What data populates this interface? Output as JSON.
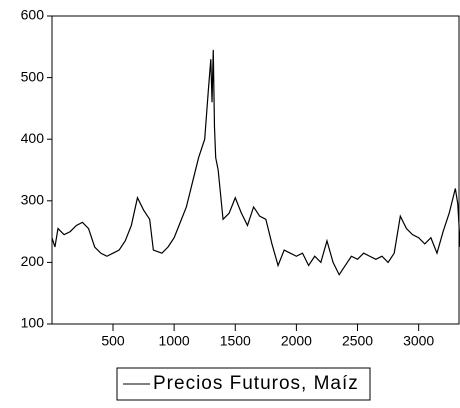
{
  "chart_data": {
    "type": "line",
    "x": [
      1,
      25,
      50,
      100,
      150,
      200,
      250,
      300,
      350,
      400,
      450,
      500,
      550,
      600,
      650,
      700,
      750,
      800,
      830,
      900,
      950,
      1000,
      1050,
      1100,
      1150,
      1200,
      1250,
      1280,
      1300,
      1310,
      1320,
      1330,
      1340,
      1360,
      1400,
      1450,
      1500,
      1550,
      1600,
      1650,
      1700,
      1750,
      1800,
      1850,
      1900,
      1950,
      2000,
      2050,
      2100,
      2150,
      2200,
      2250,
      2300,
      2350,
      2400,
      2450,
      2500,
      2550,
      2600,
      2650,
      2700,
      2750,
      2800,
      2850,
      2900,
      2950,
      3000,
      3050,
      3100,
      3150,
      3200,
      3250,
      3300,
      3320,
      3340
    ],
    "series": [
      {
        "name": "Precios Futuros, Maíz",
        "color": "#000000",
        "values": [
          240,
          225,
          255,
          245,
          250,
          260,
          265,
          255,
          225,
          215,
          210,
          215,
          220,
          235,
          260,
          305,
          285,
          270,
          220,
          215,
          225,
          240,
          265,
          290,
          330,
          370,
          400,
          480,
          530,
          460,
          545,
          420,
          370,
          350,
          270,
          280,
          305,
          280,
          260,
          290,
          275,
          270,
          230,
          195,
          220,
          215,
          210,
          215,
          195,
          210,
          200,
          235,
          200,
          180,
          195,
          210,
          205,
          215,
          210,
          205,
          210,
          200,
          215,
          275,
          255,
          245,
          240,
          230,
          240,
          215,
          250,
          280,
          320,
          295,
          225
        ]
      }
    ],
    "xlim": [
      1,
      3330
    ],
    "xticks": [
      500,
      1000,
      1500,
      2000,
      2500,
      3000
    ],
    "ylim": [
      100,
      600
    ],
    "yticks": [
      100,
      200,
      300,
      400,
      500,
      600
    ],
    "grid": false
  }
}
